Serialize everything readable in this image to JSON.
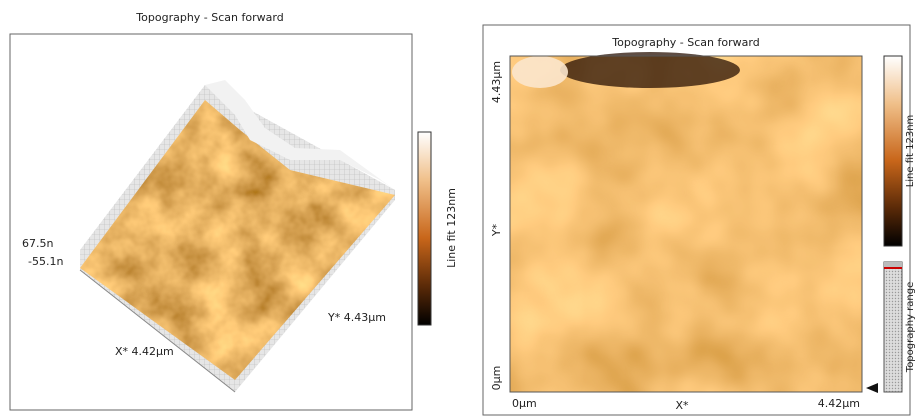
{
  "left_panel": {
    "title": "Topography - Scan forward",
    "z_max": "67.5n",
    "z_min": "-55.1n",
    "x_axis": "X* 4.42µm",
    "y_axis": "Y* 4.43µm",
    "colorbar_label": "Line fit 123nm"
  },
  "right_panel": {
    "title": "Topography - Scan forward",
    "y_top": "4.43µm",
    "y_axis": "Y*",
    "y_bottom": "0µm",
    "x_left": "0µm",
    "x_axis": "X*",
    "x_right": "4.42µm",
    "colorbar_label": "Line fit 123nm",
    "range_label": "Topography range"
  }
}
